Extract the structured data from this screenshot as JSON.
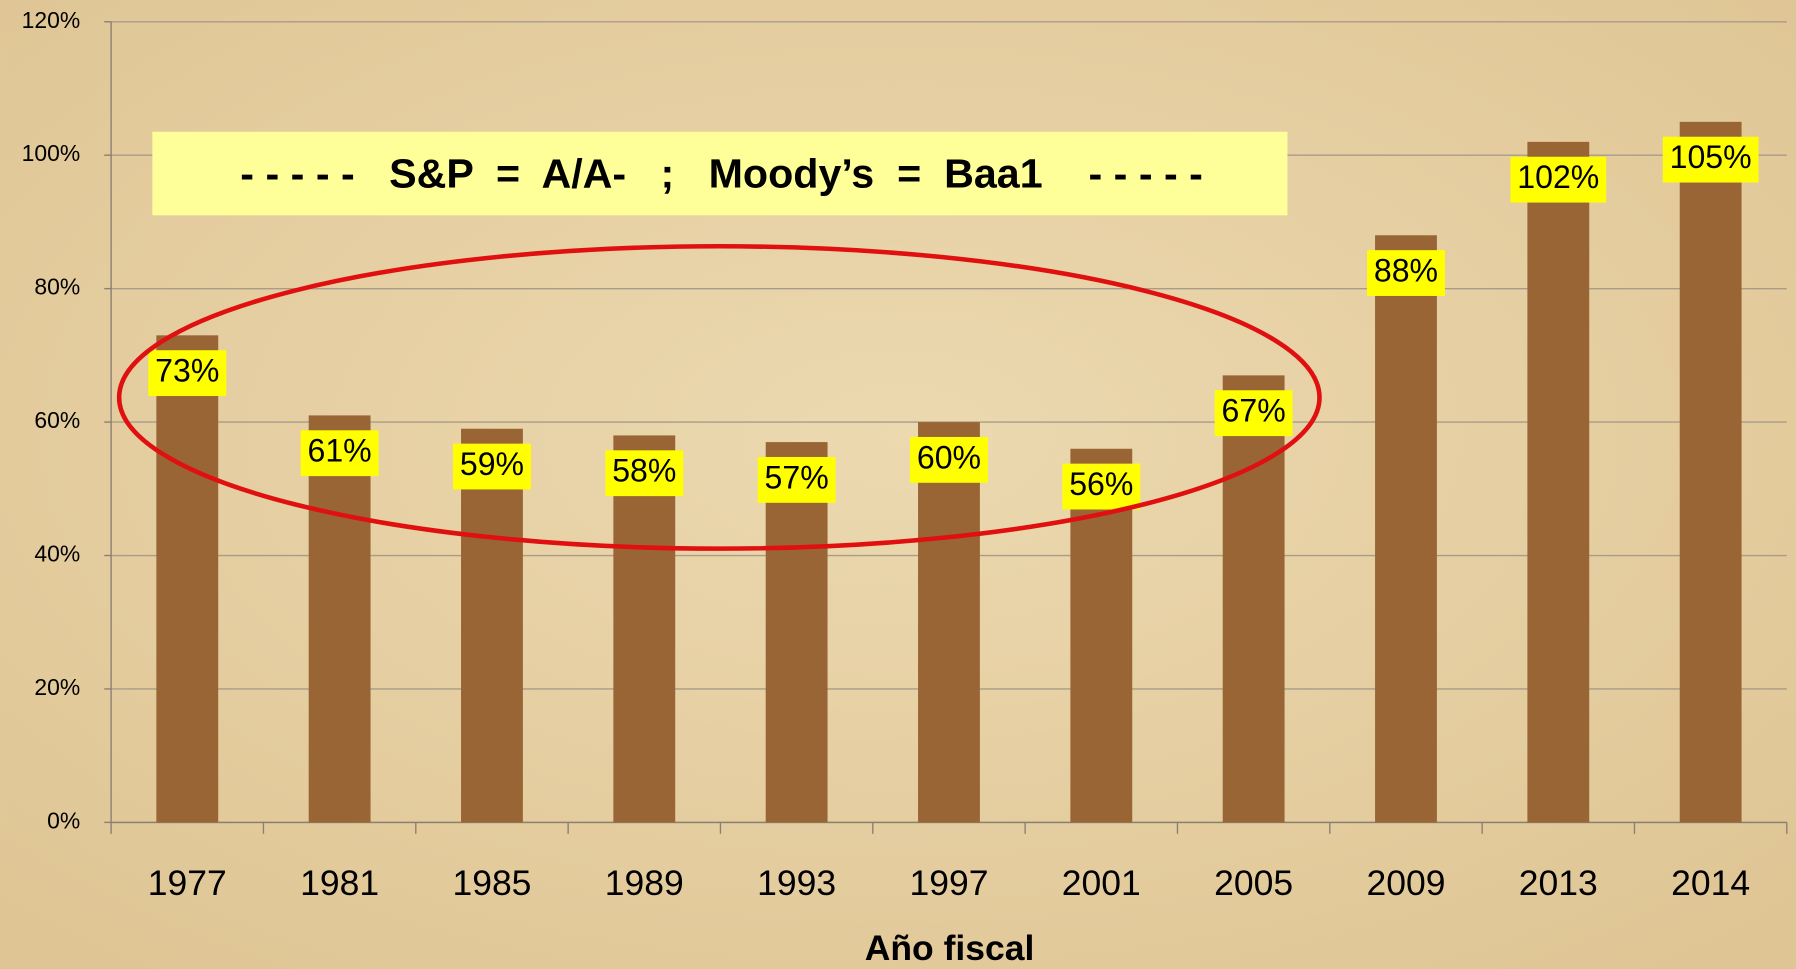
{
  "chart_data": {
    "type": "bar",
    "annotation": "- - - - -   S&P  =  A/A-   ;   Moody’s  =  Baa1    - - - - -",
    "x_label": "Año fiscal",
    "categories": [
      "1977",
      "1981",
      "1985",
      "1989",
      "1993",
      "1997",
      "2001",
      "2005",
      "2009",
      "2013",
      "2014"
    ],
    "values": [
      73,
      61,
      59,
      58,
      57,
      60,
      56,
      67,
      88,
      102,
      105
    ],
    "value_labels": [
      "73%",
      "61%",
      "59%",
      "58%",
      "57%",
      "60%",
      "56%",
      "67%",
      "88%",
      "102%",
      "105%"
    ],
    "color": "#9a6535",
    "ylim": [
      0,
      120
    ],
    "yticks": [
      {
        "value": 0,
        "label": "0%"
      },
      {
        "value": 20,
        "label": "20%"
      },
      {
        "value": 40,
        "label": "40%"
      },
      {
        "value": 60,
        "label": "60%"
      },
      {
        "value": 80,
        "label": "80%"
      },
      {
        "value": 100,
        "label": "100%"
      },
      {
        "value": 120,
        "label": "120%"
      }
    ],
    "grid": true
  }
}
